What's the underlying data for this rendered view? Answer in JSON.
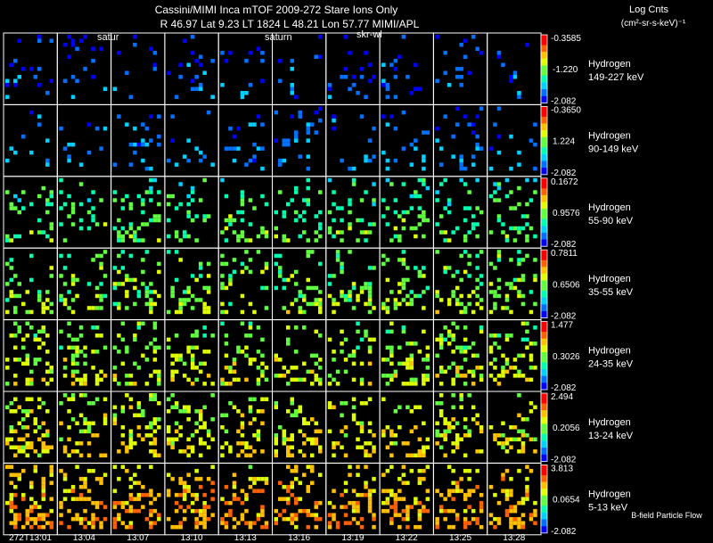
{
  "header": {
    "title": "Cassini/MIMI Inca mTOF  2009-272   Stare   Ions Only",
    "subtitle": "R      46.97 Lat 9.23 LT 1824 L        48.21 Lon       57.77  MIMI/APL",
    "unit_line1": "Log Cnts",
    "unit_line2": "(cm²-sr-s-keV)⁻¹",
    "overlay_labels": [
      "satur",
      "saturn",
      "skr-wl"
    ]
  },
  "footer": {
    "x_ticks": [
      "272T13:01",
      "13:04",
      "13:07",
      "13:10",
      "13:13",
      "13:16",
      "13:19",
      "13:22",
      "13:25",
      "13:28"
    ],
    "legend_note": "B-field Particle Flow"
  },
  "colors": {
    "background": "#000000",
    "frame": "#ffffff",
    "colorbar": [
      "#0000ff",
      "#0070ff",
      "#00d0ff",
      "#00ffb0",
      "#60ff40",
      "#e0ff00",
      "#ffc000",
      "#ff6000",
      "#ff0000"
    ]
  },
  "chart_data": {
    "type": "heatmap",
    "title": "Cassini/MIMI Inca mTOF  2009-272   Stare   Ions Only",
    "colorbar_label": "Log Cnts (cm²-sr-s-keV)⁻¹",
    "x_ticks": [
      "272T13:01",
      "13:04",
      "13:07",
      "13:10",
      "13:13",
      "13:16",
      "13:19",
      "13:22",
      "13:25",
      "13:28"
    ],
    "rows": [
      {
        "species": "Hydrogen",
        "energy": "149-227 keV",
        "cmax": "-0.3585",
        "cmid": "-1.220",
        "cmin": "-2.082",
        "level": 0.08
      },
      {
        "species": "Hydrogen",
        "energy": "90-149 keV",
        "cmax": "-0.3650",
        "cmid": "1.224",
        "cmin": "-2.082",
        "level": 0.12
      },
      {
        "species": "Hydrogen",
        "energy": "55-90 keV",
        "cmax": "0.1672",
        "cmid": "0.9576",
        "cmin": "-2.082",
        "level": 0.38
      },
      {
        "species": "Hydrogen",
        "energy": "35-55 keV",
        "cmax": "0.7811",
        "cmid": "0.6506",
        "cmin": "-2.082",
        "level": 0.45
      },
      {
        "species": "Hydrogen",
        "energy": "24-35 keV",
        "cmax": "1.477",
        "cmid": "0.3026",
        "cmin": "-2.082",
        "level": 0.5
      },
      {
        "species": "Hydrogen",
        "energy": "13-24 keV",
        "cmax": "2.494",
        "cmid": "0.2056",
        "cmin": "-2.082",
        "level": 0.55
      },
      {
        "species": "Hydrogen",
        "energy": "5-13 keV",
        "cmax": "3.813",
        "cmid": "0.0654",
        "cmin": "-2.082",
        "level": 0.66
      }
    ],
    "columns": 10
  }
}
